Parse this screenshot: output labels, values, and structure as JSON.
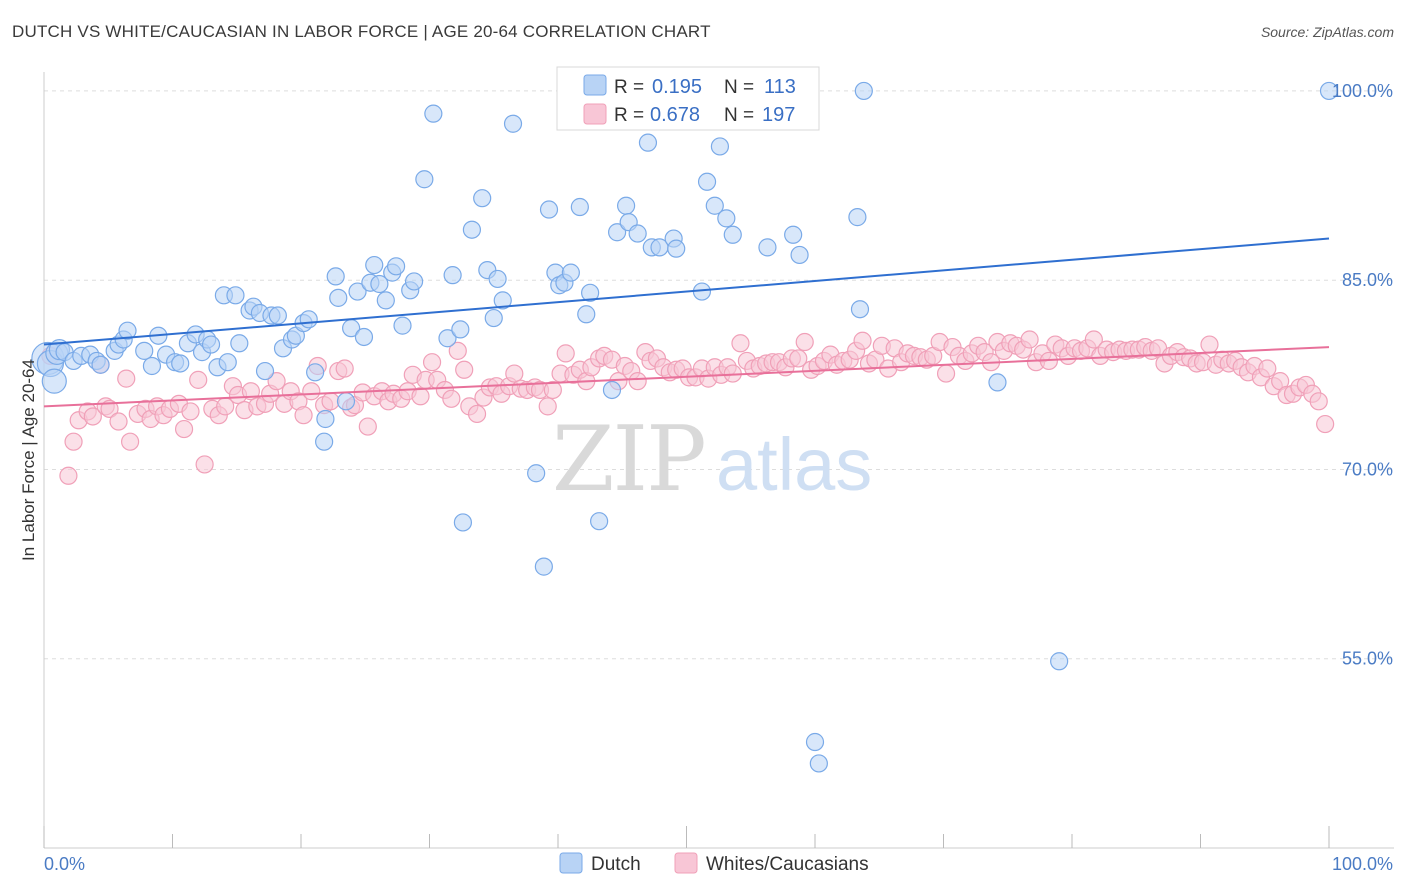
{
  "header": {
    "title": "DUTCH VS WHITE/CAUCASIAN IN LABOR FORCE | AGE 20-64 CORRELATION CHART",
    "source": "Source: ZipAtlas.com"
  },
  "chart_data": {
    "type": "scatter",
    "title": "DUTCH VS WHITE/CAUCASIAN IN LABOR FORCE | AGE 20-64 CORRELATION CHART",
    "xlabel": "",
    "ylabel": "In Labor Force | Age 20-64",
    "xlim": [
      0,
      100
    ],
    "ylim": [
      40,
      101.5
    ],
    "x_tick_labels": [
      "0.0%",
      "100.0%"
    ],
    "y_ticks": [
      55,
      70,
      85,
      100
    ],
    "y_tick_labels": [
      "55.0%",
      "70.0%",
      "85.0%",
      "100.0%"
    ],
    "grid": true,
    "legend_position": "top-center",
    "watermark": "ZIPatlas",
    "series": [
      {
        "name": "Dutch",
        "color": "#7aaae8",
        "fill": "#b8d3f5",
        "line_color": "#2f6fd0",
        "r": "0.195",
        "n": "113",
        "trend": {
          "x": [
            0,
            100
          ],
          "y": [
            79.9,
            88.3
          ]
        },
        "points": [
          [
            0.3,
            78.8
          ],
          [
            0.5,
            78.4
          ],
          [
            0.8,
            77.0
          ],
          [
            1.0,
            79.2
          ],
          [
            1.2,
            79.5
          ],
          [
            1.6,
            79.3
          ],
          [
            2.3,
            78.6
          ],
          [
            2.9,
            79.0
          ],
          [
            3.6,
            79.1
          ],
          [
            4.1,
            78.6
          ],
          [
            4.4,
            78.3
          ],
          [
            5.5,
            79.4
          ],
          [
            5.8,
            79.9
          ],
          [
            6.2,
            80.3
          ],
          [
            6.5,
            81.0
          ],
          [
            7.8,
            79.4
          ],
          [
            8.4,
            78.2
          ],
          [
            8.9,
            80.6
          ],
          [
            9.5,
            79.1
          ],
          [
            10.2,
            78.5
          ],
          [
            10.6,
            78.4
          ],
          [
            11.2,
            80.0
          ],
          [
            11.8,
            80.7
          ],
          [
            12.3,
            79.3
          ],
          [
            12.7,
            80.3
          ],
          [
            13.0,
            79.9
          ],
          [
            13.5,
            78.1
          ],
          [
            14.0,
            83.8
          ],
          [
            14.3,
            78.5
          ],
          [
            14.9,
            83.8
          ],
          [
            15.2,
            80.0
          ],
          [
            16.0,
            82.6
          ],
          [
            16.3,
            82.9
          ],
          [
            16.8,
            82.4
          ],
          [
            17.2,
            77.8
          ],
          [
            17.7,
            82.2
          ],
          [
            18.2,
            82.2
          ],
          [
            18.6,
            79.6
          ],
          [
            19.3,
            80.3
          ],
          [
            19.6,
            80.6
          ],
          [
            20.2,
            81.6
          ],
          [
            20.6,
            81.9
          ],
          [
            21.1,
            77.7
          ],
          [
            21.8,
            72.2
          ],
          [
            21.9,
            74.0
          ],
          [
            22.7,
            85.3
          ],
          [
            22.9,
            83.6
          ],
          [
            23.5,
            75.4
          ],
          [
            23.9,
            81.2
          ],
          [
            24.4,
            84.1
          ],
          [
            24.9,
            80.5
          ],
          [
            25.4,
            84.8
          ],
          [
            25.7,
            86.2
          ],
          [
            26.1,
            84.7
          ],
          [
            26.6,
            83.4
          ],
          [
            27.1,
            85.6
          ],
          [
            27.4,
            86.1
          ],
          [
            27.9,
            81.4
          ],
          [
            28.5,
            84.2
          ],
          [
            28.8,
            84.9
          ],
          [
            29.6,
            93.0
          ],
          [
            30.3,
            98.2
          ],
          [
            31.4,
            80.4
          ],
          [
            31.8,
            85.4
          ],
          [
            32.4,
            81.1
          ],
          [
            32.6,
            65.8
          ],
          [
            33.3,
            89.0
          ],
          [
            34.1,
            91.5
          ],
          [
            34.5,
            85.8
          ],
          [
            35.0,
            82.0
          ],
          [
            35.3,
            85.1
          ],
          [
            35.7,
            83.4
          ],
          [
            36.5,
            97.4
          ],
          [
            38.3,
            69.7
          ],
          [
            38.9,
            62.3
          ],
          [
            39.3,
            90.6
          ],
          [
            39.8,
            85.6
          ],
          [
            40.1,
            84.6
          ],
          [
            40.5,
            84.8
          ],
          [
            41.0,
            85.6
          ],
          [
            41.7,
            90.8
          ],
          [
            42.2,
            82.3
          ],
          [
            42.5,
            84.0
          ],
          [
            43.2,
            65.9
          ],
          [
            44.2,
            76.3
          ],
          [
            44.6,
            88.8
          ],
          [
            45.3,
            90.9
          ],
          [
            45.5,
            89.6
          ],
          [
            46.2,
            88.7
          ],
          [
            47.0,
            95.9
          ],
          [
            47.3,
            87.6
          ],
          [
            47.9,
            87.6
          ],
          [
            49.0,
            88.3
          ],
          [
            49.2,
            87.5
          ],
          [
            51.2,
            84.1
          ],
          [
            51.6,
            92.8
          ],
          [
            52.2,
            90.9
          ],
          [
            52.6,
            95.6
          ],
          [
            53.1,
            89.9
          ],
          [
            53.6,
            88.6
          ],
          [
            56.3,
            87.6
          ],
          [
            58.3,
            88.6
          ],
          [
            58.8,
            87.0
          ],
          [
            60.0,
            48.4
          ],
          [
            60.3,
            46.7
          ],
          [
            63.3,
            90.0
          ],
          [
            63.5,
            82.7
          ],
          [
            63.8,
            100.0
          ],
          [
            74.2,
            76.9
          ],
          [
            79.0,
            54.8
          ],
          [
            100.0,
            100.0
          ]
        ]
      },
      {
        "name": "Whites/Caucasians",
        "color": "#f0a0b8",
        "fill": "#f8c6d6",
        "line_color": "#e8709a",
        "r": "0.678",
        "n": "197",
        "trend": {
          "x": [
            0,
            100
          ],
          "y": [
            75.0,
            79.7
          ]
        },
        "points": [
          [
            1.9,
            69.5
          ],
          [
            2.3,
            72.2
          ],
          [
            2.7,
            73.9
          ],
          [
            3.4,
            74.6
          ],
          [
            3.8,
            74.2
          ],
          [
            4.4,
            78.3
          ],
          [
            4.8,
            75.0
          ],
          [
            5.1,
            74.8
          ],
          [
            5.8,
            73.8
          ],
          [
            6.4,
            77.2
          ],
          [
            6.7,
            72.2
          ],
          [
            7.3,
            74.4
          ],
          [
            7.9,
            74.8
          ],
          [
            8.3,
            74.0
          ],
          [
            8.8,
            75.0
          ],
          [
            9.3,
            74.3
          ],
          [
            9.8,
            74.8
          ],
          [
            10.5,
            75.2
          ],
          [
            10.9,
            73.2
          ],
          [
            11.4,
            74.6
          ],
          [
            12.0,
            77.1
          ],
          [
            12.5,
            70.4
          ],
          [
            13.1,
            74.8
          ],
          [
            13.6,
            74.3
          ],
          [
            14.1,
            75.0
          ],
          [
            14.7,
            76.6
          ],
          [
            15.1,
            75.9
          ],
          [
            15.6,
            74.7
          ],
          [
            16.1,
            76.2
          ],
          [
            16.6,
            75.0
          ],
          [
            17.2,
            75.2
          ],
          [
            17.6,
            76.0
          ],
          [
            18.1,
            77.0
          ],
          [
            18.7,
            75.2
          ],
          [
            19.2,
            76.2
          ],
          [
            19.8,
            75.4
          ],
          [
            20.2,
            74.3
          ],
          [
            20.8,
            76.2
          ],
          [
            21.3,
            78.2
          ],
          [
            21.8,
            75.1
          ],
          [
            22.3,
            75.4
          ],
          [
            22.9,
            77.8
          ],
          [
            23.4,
            78.0
          ],
          [
            23.9,
            74.9
          ],
          [
            24.2,
            75.1
          ],
          [
            24.8,
            76.1
          ],
          [
            25.2,
            73.4
          ],
          [
            25.7,
            75.8
          ],
          [
            26.3,
            76.2
          ],
          [
            26.8,
            75.4
          ],
          [
            27.2,
            76.0
          ],
          [
            27.8,
            75.6
          ],
          [
            28.3,
            76.2
          ],
          [
            28.7,
            77.5
          ],
          [
            29.3,
            75.8
          ],
          [
            29.7,
            77.1
          ],
          [
            30.2,
            78.5
          ],
          [
            30.6,
            77.1
          ],
          [
            31.2,
            76.3
          ],
          [
            31.7,
            75.6
          ],
          [
            32.2,
            79.4
          ],
          [
            32.7,
            77.9
          ],
          [
            33.1,
            75.0
          ],
          [
            33.7,
            74.4
          ],
          [
            34.2,
            75.7
          ],
          [
            34.7,
            76.5
          ],
          [
            35.2,
            76.6
          ],
          [
            35.6,
            76.0
          ],
          [
            36.2,
            76.6
          ],
          [
            36.6,
            77.6
          ],
          [
            37.1,
            76.4
          ],
          [
            37.6,
            76.3
          ],
          [
            38.2,
            76.5
          ],
          [
            38.6,
            76.3
          ],
          [
            39.2,
            75.0
          ],
          [
            39.6,
            76.3
          ],
          [
            40.2,
            77.6
          ],
          [
            40.6,
            79.2
          ],
          [
            41.2,
            77.5
          ],
          [
            41.7,
            77.9
          ],
          [
            42.2,
            77.0
          ],
          [
            42.6,
            78.1
          ],
          [
            43.2,
            78.8
          ],
          [
            43.6,
            79.0
          ],
          [
            44.2,
            78.7
          ],
          [
            44.7,
            77.0
          ],
          [
            45.2,
            78.2
          ],
          [
            45.7,
            77.8
          ],
          [
            46.2,
            77.0
          ],
          [
            46.8,
            79.3
          ],
          [
            47.2,
            78.6
          ],
          [
            47.7,
            78.8
          ],
          [
            48.2,
            78.1
          ],
          [
            48.7,
            77.7
          ],
          [
            49.2,
            77.9
          ],
          [
            49.7,
            78.0
          ],
          [
            50.2,
            77.3
          ],
          [
            50.7,
            77.3
          ],
          [
            51.2,
            78.0
          ],
          [
            51.7,
            77.2
          ],
          [
            52.2,
            78.1
          ],
          [
            52.7,
            77.5
          ],
          [
            53.2,
            78.1
          ],
          [
            53.6,
            77.6
          ],
          [
            54.2,
            80.0
          ],
          [
            54.7,
            78.6
          ],
          [
            55.2,
            78.0
          ],
          [
            55.7,
            78.2
          ],
          [
            56.2,
            78.4
          ],
          [
            56.7,
            78.5
          ],
          [
            57.2,
            78.5
          ],
          [
            57.7,
            78.1
          ],
          [
            58.2,
            78.8
          ],
          [
            58.7,
            78.8
          ],
          [
            59.2,
            80.1
          ],
          [
            59.7,
            77.9
          ],
          [
            60.2,
            78.2
          ],
          [
            60.7,
            78.6
          ],
          [
            61.2,
            79.1
          ],
          [
            61.7,
            78.3
          ],
          [
            62.2,
            78.6
          ],
          [
            62.7,
            78.7
          ],
          [
            63.2,
            79.4
          ],
          [
            63.7,
            80.2
          ],
          [
            64.2,
            78.4
          ],
          [
            64.7,
            78.7
          ],
          [
            65.2,
            79.8
          ],
          [
            65.7,
            78.0
          ],
          [
            66.2,
            79.6
          ],
          [
            66.7,
            78.5
          ],
          [
            67.2,
            79.2
          ],
          [
            67.7,
            79.0
          ],
          [
            68.2,
            78.9
          ],
          [
            68.7,
            78.7
          ],
          [
            69.2,
            79.0
          ],
          [
            69.7,
            80.1
          ],
          [
            70.2,
            77.6
          ],
          [
            70.7,
            79.7
          ],
          [
            71.2,
            79.0
          ],
          [
            71.7,
            78.6
          ],
          [
            72.2,
            79.2
          ],
          [
            72.7,
            79.8
          ],
          [
            73.2,
            79.3
          ],
          [
            73.7,
            78.5
          ],
          [
            74.2,
            80.1
          ],
          [
            74.7,
            79.4
          ],
          [
            75.2,
            80.0
          ],
          [
            75.7,
            79.8
          ],
          [
            76.2,
            79.5
          ],
          [
            76.7,
            80.3
          ],
          [
            77.2,
            78.5
          ],
          [
            77.7,
            79.2
          ],
          [
            78.2,
            78.6
          ],
          [
            78.7,
            79.9
          ],
          [
            79.2,
            79.6
          ],
          [
            79.7,
            79.0
          ],
          [
            80.2,
            79.6
          ],
          [
            80.7,
            79.4
          ],
          [
            81.2,
            79.6
          ],
          [
            81.7,
            80.3
          ],
          [
            82.2,
            79.0
          ],
          [
            82.7,
            79.5
          ],
          [
            83.2,
            79.3
          ],
          [
            83.7,
            79.5
          ],
          [
            84.2,
            79.4
          ],
          [
            84.7,
            79.5
          ],
          [
            85.2,
            79.5
          ],
          [
            85.7,
            79.7
          ],
          [
            86.2,
            79.4
          ],
          [
            86.7,
            79.6
          ],
          [
            87.2,
            78.4
          ],
          [
            87.7,
            79.0
          ],
          [
            88.2,
            79.3
          ],
          [
            88.7,
            78.9
          ],
          [
            89.2,
            78.8
          ],
          [
            89.7,
            78.4
          ],
          [
            90.2,
            78.5
          ],
          [
            90.7,
            79.9
          ],
          [
            91.2,
            78.3
          ],
          [
            91.7,
            78.7
          ],
          [
            92.2,
            78.4
          ],
          [
            92.7,
            78.6
          ],
          [
            93.2,
            78.1
          ],
          [
            93.7,
            77.7
          ],
          [
            94.2,
            78.2
          ],
          [
            94.7,
            77.3
          ],
          [
            95.2,
            78.0
          ],
          [
            95.7,
            76.6
          ],
          [
            96.2,
            77.0
          ],
          [
            96.7,
            75.9
          ],
          [
            97.2,
            76.0
          ],
          [
            97.7,
            76.5
          ],
          [
            98.2,
            76.7
          ],
          [
            98.7,
            76.0
          ],
          [
            99.2,
            75.4
          ],
          [
            99.7,
            73.6
          ],
          [
            0.5,
            79.0
          ]
        ]
      }
    ]
  },
  "legend": {
    "r_label": "R =",
    "n_label": "N ="
  }
}
